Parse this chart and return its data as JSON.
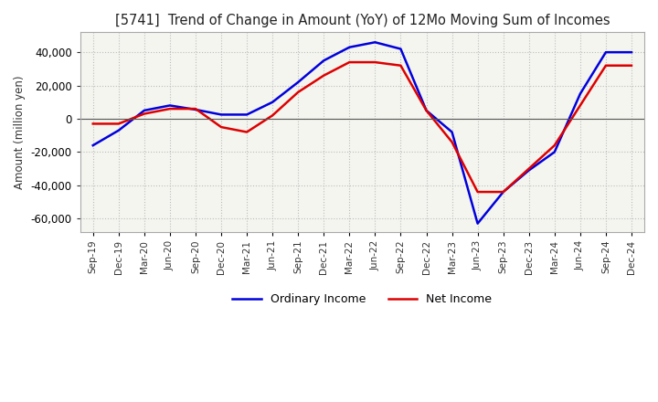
{
  "title": "[5741]  Trend of Change in Amount (YoY) of 12Mo Moving Sum of Incomes",
  "ylabel": "Amount (million yen)",
  "ylim": [
    -68000,
    52000
  ],
  "yticks": [
    -60000,
    -40000,
    -20000,
    0,
    20000,
    40000
  ],
  "plot_bg_color": "#f5f5f0",
  "fig_bg_color": "#ffffff",
  "grid_color": "#bbbbbb",
  "line_blue": "#0000dd",
  "line_red": "#dd0000",
  "line_width": 1.8,
  "x_labels": [
    "Sep-19",
    "Dec-19",
    "Mar-20",
    "Jun-20",
    "Sep-20",
    "Dec-20",
    "Mar-21",
    "Jun-21",
    "Sep-21",
    "Dec-21",
    "Mar-22",
    "Jun-22",
    "Sep-22",
    "Dec-22",
    "Mar-23",
    "Jun-23",
    "Sep-23",
    "Dec-23",
    "Mar-24",
    "Jun-24",
    "Sep-24",
    "Dec-24"
  ],
  "ordinary_income": [
    -16000,
    -7000,
    5000,
    8000,
    5500,
    2500,
    2500,
    10000,
    22000,
    35000,
    43000,
    46000,
    42000,
    5000,
    -8000,
    -63000,
    -44000,
    -31000,
    -20000,
    15000,
    40000,
    40000
  ],
  "net_income": [
    -3000,
    -3000,
    3000,
    6000,
    6000,
    -5000,
    -8000,
    2000,
    16000,
    26000,
    34000,
    34000,
    32000,
    5000,
    -14000,
    -44000,
    -44000,
    -30000,
    -16000,
    8000,
    32000,
    32000
  ],
  "legend_labels": [
    "Ordinary Income",
    "Net Income"
  ]
}
